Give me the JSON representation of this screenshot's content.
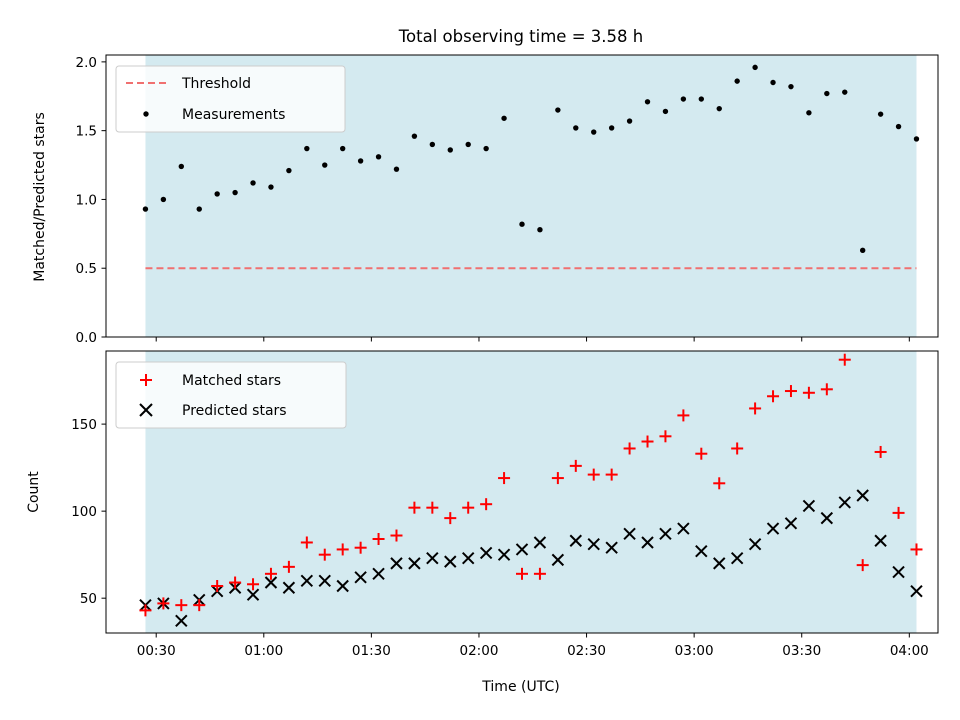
{
  "figure": {
    "title": "Total observing time = 3.58 h",
    "xlabel": "Time (UTC)",
    "x_tick_labels": [
      "00:30",
      "01:00",
      "01:30",
      "02:00",
      "02:30",
      "03:00",
      "03:30",
      "04:00"
    ],
    "observing_window_color": "#d4eaf0"
  },
  "chart_data": [
    {
      "type": "scatter",
      "panel": "top",
      "title": "Total observing time = 3.58 h",
      "xlabel": "",
      "ylabel": "Matched/Predicted stars",
      "xlim": [
        "00:16",
        "04:08"
      ],
      "ylim": [
        0,
        2.05
      ],
      "y_ticks": [
        0.0,
        0.5,
        1.0,
        1.5,
        2.0
      ],
      "y_tick_labels": [
        "0.0",
        "0.5",
        "1.0",
        "1.5",
        "2.0"
      ],
      "observing_window": [
        "00:27",
        "04:02"
      ],
      "legend": {
        "position": "upper left",
        "entries": [
          "Threshold",
          "Measurements"
        ]
      },
      "threshold": {
        "name": "Threshold",
        "value": 0.5,
        "color": "#f07070",
        "style": "dashed",
        "x_range": [
          "00:27",
          "04:02"
        ]
      },
      "series": [
        {
          "name": "Measurements",
          "marker": "dot",
          "color": "#000000",
          "x": [
            "00:27",
            "00:32",
            "00:37",
            "00:42",
            "00:47",
            "00:52",
            "00:57",
            "01:02",
            "01:07",
            "01:12",
            "01:17",
            "01:22",
            "01:27",
            "01:32",
            "01:37",
            "01:42",
            "01:47",
            "01:52",
            "01:57",
            "02:02",
            "02:07",
            "02:12",
            "02:17",
            "02:22",
            "02:27",
            "02:32",
            "02:37",
            "02:42",
            "02:47",
            "02:52",
            "02:57",
            "03:02",
            "03:07",
            "03:12",
            "03:17",
            "03:22",
            "03:27",
            "03:32",
            "03:37",
            "03:42",
            "03:47",
            "03:52",
            "03:57",
            "04:02"
          ],
          "y": [
            0.93,
            1.0,
            1.24,
            0.93,
            1.04,
            1.05,
            1.12,
            1.09,
            1.21,
            1.37,
            1.25,
            1.37,
            1.28,
            1.31,
            1.22,
            1.46,
            1.4,
            1.36,
            1.4,
            1.37,
            1.59,
            0.82,
            0.78,
            1.65,
            1.52,
            1.49,
            1.52,
            1.57,
            1.71,
            1.64,
            1.73,
            1.73,
            1.66,
            1.86,
            1.96,
            1.85,
            1.82,
            1.63,
            1.77,
            1.78,
            0.63,
            1.62,
            1.53,
            1.44
          ]
        }
      ]
    },
    {
      "type": "scatter",
      "panel": "bottom",
      "xlabel": "Time (UTC)",
      "ylabel": "Count",
      "xlim": [
        "00:16",
        "04:08"
      ],
      "ylim": [
        30,
        192
      ],
      "y_ticks": [
        50,
        100,
        150
      ],
      "y_tick_labels": [
        "50",
        "100",
        "150"
      ],
      "observing_window": [
        "00:27",
        "04:02"
      ],
      "legend": {
        "position": "upper left",
        "entries": [
          "Matched stars",
          "Predicted stars"
        ]
      },
      "series": [
        {
          "name": "Matched stars",
          "marker": "plus",
          "color": "#ff0000",
          "x": [
            "00:27",
            "00:32",
            "00:37",
            "00:42",
            "00:47",
            "00:52",
            "00:57",
            "01:02",
            "01:07",
            "01:12",
            "01:17",
            "01:22",
            "01:27",
            "01:32",
            "01:37",
            "01:42",
            "01:47",
            "01:52",
            "01:57",
            "02:02",
            "02:07",
            "02:12",
            "02:17",
            "02:22",
            "02:27",
            "02:32",
            "02:37",
            "02:42",
            "02:47",
            "02:52",
            "02:57",
            "03:02",
            "03:07",
            "03:12",
            "03:17",
            "03:22",
            "03:27",
            "03:32",
            "03:37",
            "03:42",
            "03:47",
            "03:52",
            "03:57",
            "04:02"
          ],
          "y": [
            43,
            47,
            46,
            46,
            57,
            59,
            58,
            64,
            68,
            82,
            75,
            78,
            79,
            84,
            86,
            102,
            102,
            96,
            102,
            104,
            119,
            64,
            64,
            119,
            126,
            121,
            121,
            136,
            140,
            143,
            155,
            133,
            116,
            136,
            159,
            166,
            169,
            168,
            170,
            187,
            69,
            134,
            99,
            78
          ]
        },
        {
          "name": "Predicted stars",
          "marker": "x",
          "color": "#000000",
          "x": [
            "00:27",
            "00:32",
            "00:37",
            "00:42",
            "00:47",
            "00:52",
            "00:57",
            "01:02",
            "01:07",
            "01:12",
            "01:17",
            "01:22",
            "01:27",
            "01:32",
            "01:37",
            "01:42",
            "01:47",
            "01:52",
            "01:57",
            "02:02",
            "02:07",
            "02:12",
            "02:17",
            "02:22",
            "02:27",
            "02:32",
            "02:37",
            "02:42",
            "02:47",
            "02:52",
            "02:57",
            "03:02",
            "03:07",
            "03:12",
            "03:17",
            "03:22",
            "03:27",
            "03:32",
            "03:37",
            "03:42",
            "03:47",
            "03:52",
            "03:57",
            "04:02"
          ],
          "y": [
            46,
            47,
            37,
            49,
            54,
            56,
            52,
            59,
            56,
            60,
            60,
            57,
            62,
            64,
            70,
            70,
            73,
            71,
            73,
            76,
            75,
            78,
            82,
            72,
            83,
            81,
            79,
            87,
            82,
            87,
            90,
            77,
            70,
            73,
            81,
            90,
            93,
            103,
            96,
            105,
            109,
            83,
            65,
            54
          ]
        }
      ]
    }
  ]
}
